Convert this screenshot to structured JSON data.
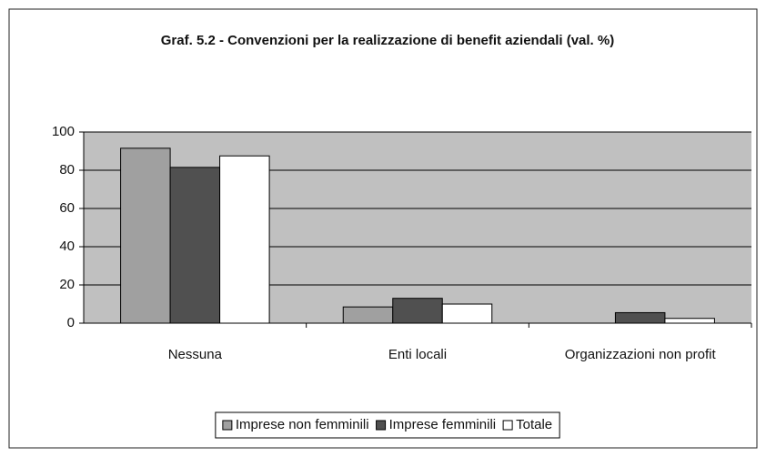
{
  "chart_data": {
    "type": "bar",
    "title": "Graf. 5.2 - Convenzioni per la realizzazione di benefit aziendali (val. %)",
    "categories": [
      "Nessuna",
      "Enti locali",
      "Organizzazioni non profit"
    ],
    "series": [
      {
        "name": "Imprese non femminili",
        "color": "#a0a0a0",
        "values": [
          91.5,
          8.5,
          0
        ]
      },
      {
        "name": "Imprese femminili",
        "color": "#505050",
        "values": [
          81.5,
          13,
          5.5
        ]
      },
      {
        "name": "Totale",
        "color": "#ffffff",
        "values": [
          87.5,
          10,
          2.5
        ]
      }
    ],
    "ylim": [
      0,
      100
    ],
    "yticks": [
      0,
      20,
      40,
      60,
      80,
      100
    ],
    "grid": true,
    "legend": "bottom"
  }
}
